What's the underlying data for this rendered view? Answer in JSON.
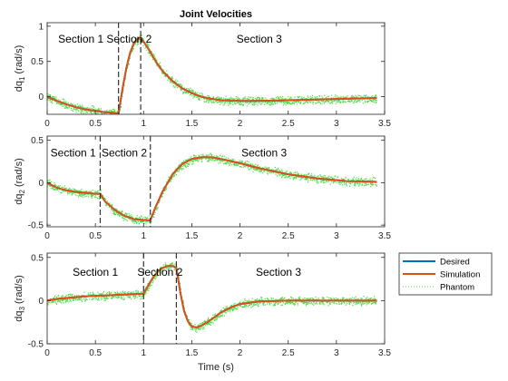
{
  "chart_data": [
    {
      "type": "line",
      "title": "Joint Velocities",
      "xlabel": "",
      "ylabel": "dq",
      "ylabel_sub": "1",
      "ylabel_unit": " (rad/s)",
      "xlim": [
        0,
        3.5
      ],
      "ylim": [
        -0.25,
        1.05
      ],
      "xticks": [
        0,
        0.5,
        1,
        1.5,
        2,
        2.5,
        3,
        3.5
      ],
      "xtick_labels": [
        "0",
        "0.5",
        "1",
        "1.5",
        "2",
        "2.5",
        "3",
        "3.5"
      ],
      "yticks": [
        0,
        0.5,
        1
      ],
      "ytick_labels": [
        "0",
        "0.5",
        "1"
      ],
      "vlines": [
        0.74,
        0.97
      ],
      "sections": [
        {
          "label": "Section 1",
          "x": 0.35,
          "y": 0.82
        },
        {
          "label": "Section 2",
          "x": 0.85,
          "y": 0.82
        },
        {
          "label": "Section 3",
          "x": 2.2,
          "y": 0.82
        }
      ],
      "series": [
        {
          "name": "Desired",
          "x": [
            0,
            0.1,
            0.2,
            0.3,
            0.4,
            0.5,
            0.6,
            0.7,
            0.74,
            0.78,
            0.82,
            0.86,
            0.9,
            0.94,
            0.97,
            1.0,
            1.05,
            1.1,
            1.15,
            1.2,
            1.3,
            1.4,
            1.5,
            1.6,
            1.7,
            1.8,
            2.0,
            2.2,
            2.5,
            2.8,
            3.1,
            3.42
          ],
          "values": [
            0,
            -0.06,
            -0.11,
            -0.15,
            -0.18,
            -0.2,
            -0.22,
            -0.23,
            -0.235,
            0.1,
            0.4,
            0.62,
            0.76,
            0.82,
            0.83,
            0.78,
            0.68,
            0.56,
            0.45,
            0.36,
            0.22,
            0.12,
            0.05,
            0.0,
            -0.03,
            -0.05,
            -0.06,
            -0.06,
            -0.05,
            -0.04,
            -0.03,
            -0.02
          ]
        },
        {
          "name": "Simulation",
          "x": [
            0,
            0.1,
            0.2,
            0.3,
            0.4,
            0.5,
            0.6,
            0.7,
            0.74,
            0.78,
            0.82,
            0.86,
            0.9,
            0.94,
            0.97,
            1.0,
            1.05,
            1.1,
            1.15,
            1.2,
            1.3,
            1.4,
            1.5,
            1.6,
            1.7,
            1.8,
            2.0,
            2.2,
            2.5,
            2.8,
            3.1,
            3.42
          ],
          "values": [
            0,
            -0.06,
            -0.11,
            -0.15,
            -0.18,
            -0.2,
            -0.22,
            -0.23,
            -0.235,
            0.1,
            0.4,
            0.62,
            0.76,
            0.82,
            0.83,
            0.78,
            0.68,
            0.56,
            0.45,
            0.36,
            0.22,
            0.12,
            0.05,
            0.0,
            -0.03,
            -0.05,
            -0.06,
            -0.06,
            -0.05,
            -0.04,
            -0.03,
            -0.02
          ]
        }
      ]
    },
    {
      "type": "line",
      "title": "",
      "xlabel": "",
      "ylabel": "dq",
      "ylabel_sub": "2",
      "ylabel_unit": " (rad/s)",
      "xlim": [
        0,
        3.5
      ],
      "ylim": [
        -0.52,
        0.55
      ],
      "xticks": [
        0,
        0.5,
        1,
        1.5,
        2,
        2.5,
        3,
        3.5
      ],
      "xtick_labels": [
        "0",
        "0.5",
        "1",
        "1.5",
        "2",
        "2.5",
        "3",
        "3.5"
      ],
      "yticks": [
        -0.5,
        0,
        0.5
      ],
      "ytick_labels": [
        "-0.5",
        "0",
        "0.5"
      ],
      "vlines": [
        0.55,
        1.07
      ],
      "sections": [
        {
          "label": "Section 1",
          "x": 0.27,
          "y": 0.35
        },
        {
          "label": "Section 2",
          "x": 0.8,
          "y": 0.35
        },
        {
          "label": "Section 3",
          "x": 2.25,
          "y": 0.35
        }
      ],
      "series": [
        {
          "name": "Desired",
          "x": [
            0,
            0.1,
            0.2,
            0.3,
            0.4,
            0.5,
            0.55,
            0.6,
            0.7,
            0.8,
            0.9,
            1.0,
            1.07,
            1.12,
            1.2,
            1.3,
            1.4,
            1.5,
            1.6,
            1.7,
            1.8,
            2.0,
            2.2,
            2.5,
            2.8,
            3.1,
            3.42
          ],
          "values": [
            0,
            -0.06,
            -0.09,
            -0.11,
            -0.12,
            -0.13,
            -0.13,
            -0.22,
            -0.32,
            -0.39,
            -0.43,
            -0.44,
            -0.445,
            -0.3,
            -0.1,
            0.1,
            0.22,
            0.28,
            0.3,
            0.3,
            0.28,
            0.23,
            0.17,
            0.1,
            0.05,
            0.02,
            0.01
          ]
        },
        {
          "name": "Simulation",
          "x": [
            0,
            0.1,
            0.2,
            0.3,
            0.4,
            0.5,
            0.55,
            0.6,
            0.7,
            0.8,
            0.9,
            1.0,
            1.07,
            1.12,
            1.2,
            1.3,
            1.4,
            1.5,
            1.6,
            1.7,
            1.8,
            2.0,
            2.2,
            2.5,
            2.8,
            3.1,
            3.42
          ],
          "values": [
            0,
            -0.06,
            -0.09,
            -0.11,
            -0.12,
            -0.13,
            -0.13,
            -0.22,
            -0.32,
            -0.39,
            -0.43,
            -0.44,
            -0.445,
            -0.3,
            -0.1,
            0.1,
            0.22,
            0.28,
            0.3,
            0.3,
            0.28,
            0.23,
            0.17,
            0.1,
            0.05,
            0.02,
            0.01
          ]
        }
      ]
    },
    {
      "type": "line",
      "title": "",
      "xlabel": "Time (s)",
      "ylabel": "dq",
      "ylabel_sub": "3",
      "ylabel_unit": " (rad/s)",
      "xlim": [
        0,
        3.5
      ],
      "ylim": [
        -0.5,
        0.55
      ],
      "xticks": [
        0,
        0.5,
        1,
        1.5,
        2,
        2.5,
        3,
        3.5
      ],
      "xtick_labels": [
        "0",
        "0.5",
        "1",
        "1.5",
        "2",
        "2.5",
        "3",
        "3.5"
      ],
      "yticks": [
        -0.5,
        0,
        0.5
      ],
      "ytick_labels": [
        "-0.5",
        "0",
        "0.5"
      ],
      "vlines": [
        1.0,
        1.34
      ],
      "sections": [
        {
          "label": "Section 1",
          "x": 0.5,
          "y": 0.33
        },
        {
          "label": "Section 2",
          "x": 1.17,
          "y": 0.33
        },
        {
          "label": "Section 3",
          "x": 2.4,
          "y": 0.33
        }
      ],
      "series": [
        {
          "name": "Desired",
          "x": [
            0,
            0.1,
            0.2,
            0.3,
            0.4,
            0.5,
            0.6,
            0.7,
            0.8,
            0.9,
            1.0,
            1.05,
            1.1,
            1.15,
            1.2,
            1.25,
            1.3,
            1.34,
            1.38,
            1.42,
            1.46,
            1.5,
            1.55,
            1.6,
            1.7,
            1.8,
            1.9,
            2.0,
            2.2,
            2.5,
            2.8,
            3.1,
            3.42
          ],
          "values": [
            0,
            0.02,
            0.03,
            0.04,
            0.05,
            0.055,
            0.06,
            0.065,
            0.07,
            0.075,
            0.08,
            0.18,
            0.27,
            0.34,
            0.38,
            0.4,
            0.4,
            0.38,
            0.1,
            -0.12,
            -0.24,
            -0.3,
            -0.31,
            -0.29,
            -0.22,
            -0.14,
            -0.08,
            -0.04,
            -0.01,
            0.0,
            0.0,
            0.0,
            0.0
          ]
        },
        {
          "name": "Simulation",
          "x": [
            0,
            0.1,
            0.2,
            0.3,
            0.4,
            0.5,
            0.6,
            0.7,
            0.8,
            0.9,
            1.0,
            1.05,
            1.1,
            1.15,
            1.2,
            1.25,
            1.3,
            1.34,
            1.38,
            1.42,
            1.46,
            1.5,
            1.55,
            1.6,
            1.7,
            1.8,
            1.9,
            2.0,
            2.2,
            2.5,
            2.8,
            3.1,
            3.42
          ],
          "values": [
            0,
            0.02,
            0.03,
            0.04,
            0.05,
            0.055,
            0.06,
            0.065,
            0.07,
            0.075,
            0.08,
            0.18,
            0.27,
            0.34,
            0.38,
            0.4,
            0.4,
            0.38,
            0.1,
            -0.12,
            -0.24,
            -0.3,
            -0.31,
            -0.29,
            -0.22,
            -0.14,
            -0.08,
            -0.04,
            -0.01,
            0.0,
            0.0,
            0.0,
            0.0
          ]
        }
      ]
    }
  ],
  "legend": {
    "position": "right",
    "entries": [
      {
        "label": "Desired",
        "color": "#0072BD",
        "style": "solid"
      },
      {
        "label": "Simulation",
        "color": "#D95319",
        "style": "solid"
      },
      {
        "label": "Phantom",
        "color": "#4DDD44",
        "style": "dotted"
      }
    ]
  },
  "colors": {
    "desired": "#0072BD",
    "simulation": "#D95319",
    "phantom": "#4DDD44",
    "axes": "#262626",
    "vline": "#333333"
  }
}
